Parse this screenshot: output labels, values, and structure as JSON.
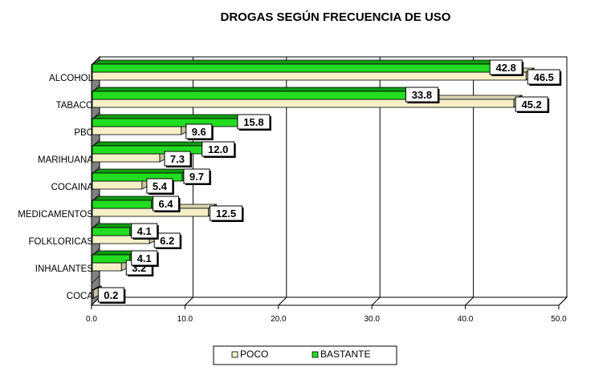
{
  "chart_data": {
    "type": "bar",
    "orientation": "horizontal",
    "title": "DROGAS SEGÚN FRECUENCIA DE USO",
    "xlabel": "",
    "ylabel": "",
    "xlim": [
      0,
      50
    ],
    "ticks": [
      0,
      10,
      20,
      30,
      40,
      50
    ],
    "tick_labels": [
      "0.0",
      "10.0",
      "20.0",
      "30.0",
      "40.0",
      "50.0"
    ],
    "grid": true,
    "legend_position": "bottom",
    "categories": [
      "ALCOHOL",
      "TABACO",
      "PBC",
      "MARIHUANA",
      "COCAINA",
      "MEDICAMENTOS",
      "FOLKLORICAS",
      "INHALANTES",
      "COCA"
    ],
    "series": [
      {
        "name": "POCO",
        "color": "#f5f0c8",
        "values": [
          46.5,
          45.2,
          9.6,
          7.3,
          5.4,
          12.5,
          6.2,
          3.2,
          0.2
        ],
        "labels": [
          "46.5",
          "45.2",
          "9.6",
          "7.3",
          "5.4",
          "12.5",
          "6.2",
          "3.2",
          "0.2"
        ]
      },
      {
        "name": "BASTANTE",
        "color": "#22dd22",
        "values": [
          42.8,
          33.8,
          15.8,
          12.0,
          9.7,
          6.4,
          4.1,
          4.1,
          0
        ],
        "labels": [
          "42.8",
          "33.8",
          "15.8",
          "12.0",
          "9.7",
          "6.4",
          "4.1",
          "4.1",
          ""
        ]
      }
    ]
  }
}
